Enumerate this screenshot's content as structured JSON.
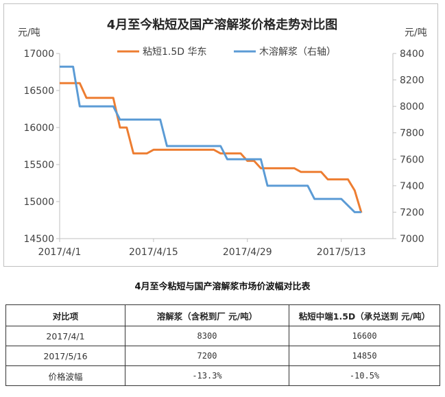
{
  "chart_data": {
    "type": "line",
    "title": "4月至今粘短及国产溶解浆价格走势对比图",
    "left_unit": "元/吨",
    "right_unit": "元/吨",
    "x_ticks": [
      "2017/4/1",
      "2017/4/15",
      "2017/4/29",
      "2017/5/13"
    ],
    "y_left": {
      "min": 14500,
      "max": 17000,
      "ticks": [
        14500,
        15000,
        15500,
        16000,
        16500,
        17000
      ]
    },
    "y_right": {
      "min": 7000,
      "max": 8400,
      "ticks": [
        7000,
        7200,
        7400,
        7600,
        7800,
        8000,
        8200,
        8400
      ]
    },
    "legend_position": "top",
    "grid": false,
    "series": [
      {
        "name": "粘短1.5D 华东",
        "axis": "left",
        "color": "#ED7D31",
        "x": [
          "2017/4/1",
          "2017/4/4",
          "2017/4/5",
          "2017/4/9",
          "2017/4/10",
          "2017/4/11",
          "2017/4/12",
          "2017/4/14",
          "2017/4/15",
          "2017/4/24",
          "2017/4/25",
          "2017/4/28",
          "2017/4/29",
          "2017/4/30",
          "2017/5/1",
          "2017/5/6",
          "2017/5/7",
          "2017/5/10",
          "2017/5/11",
          "2017/5/12",
          "2017/5/13",
          "2017/5/14",
          "2017/5/15",
          "2017/5/16"
        ],
        "values": [
          16600,
          16600,
          16400,
          16400,
          16000,
          16000,
          15650,
          15650,
          15700,
          15700,
          15650,
          15650,
          15550,
          15550,
          15450,
          15450,
          15400,
          15400,
          15300,
          15300,
          15300,
          15300,
          15150,
          14850
        ]
      },
      {
        "name": "木溶解浆（右轴）",
        "axis": "right",
        "color": "#5B9BD5",
        "x": [
          "2017/4/1",
          "2017/4/3",
          "2017/4/4",
          "2017/4/9",
          "2017/4/10",
          "2017/4/16",
          "2017/4/17",
          "2017/4/25",
          "2017/4/26",
          "2017/5/1",
          "2017/5/2",
          "2017/5/8",
          "2017/5/9",
          "2017/5/12",
          "2017/5/13",
          "2017/5/15",
          "2017/5/16"
        ],
        "values": [
          8300,
          8300,
          8000,
          8000,
          7900,
          7900,
          7700,
          7700,
          7600,
          7600,
          7400,
          7400,
          7300,
          7300,
          7300,
          7200,
          7200
        ]
      }
    ]
  },
  "table": {
    "title": "4月至今粘短与国产溶解浆市场价波幅对比表",
    "headers": [
      "对比项",
      "溶解浆（含税到厂 元/吨）",
      "粘短中端1.5D（承兑送到 元/吨）"
    ],
    "rows": [
      [
        "2017/4/1",
        "8300",
        "16600"
      ],
      [
        "2017/5/16",
        "7200",
        "14850"
      ],
      [
        "价格波幅",
        "-13.3%",
        "-10.5%"
      ]
    ]
  }
}
